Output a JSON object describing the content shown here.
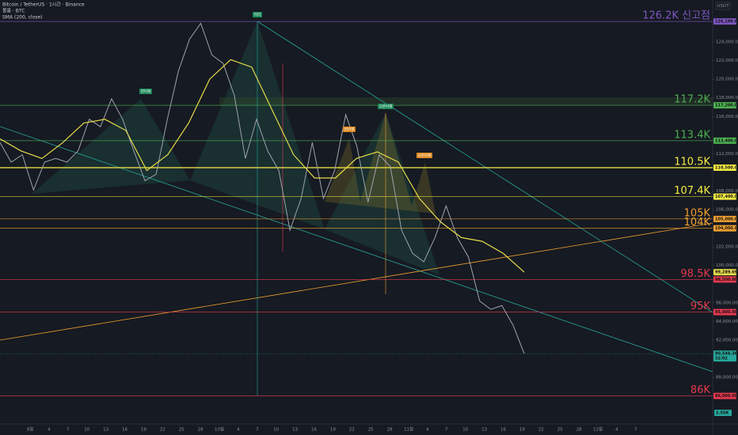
{
  "header": {
    "title": "Bitcoin / TetherUS · 1시간 · Binance",
    "volume": "볼륨 · BTC",
    "indicator": "SMA (200, close)"
  },
  "currency": "USDT",
  "pattern_tags": [
    "왼어깨",
    "머리",
    "오른어깨",
    "왼어깨",
    "오른어깨"
  ],
  "volume_badge": "2.55K",
  "chart_data": {
    "type": "line",
    "ylim": [
      83000,
      128500
    ],
    "yticks": [
      {
        "value": 124000,
        "label": "124,000.00"
      },
      {
        "value": 122000,
        "label": "122,000.00"
      },
      {
        "value": 120000,
        "label": "120,000.00"
      },
      {
        "value": 118000,
        "label": "118,000.00"
      },
      {
        "value": 116000,
        "label": "116,000.00"
      },
      {
        "value": 112000,
        "label": "112,000.00"
      },
      {
        "value": 108000,
        "label": "108,000.00"
      },
      {
        "value": 106000,
        "label": "106,000.00"
      },
      {
        "value": 102000,
        "label": "102,000.00"
      },
      {
        "value": 100000,
        "label": "100,000.00"
      },
      {
        "value": 96000,
        "label": "96,000.00"
      },
      {
        "value": 94000,
        "label": "94,000.00"
      },
      {
        "value": 92000,
        "label": "92,000.00"
      },
      {
        "value": 88000,
        "label": "88,000.00"
      }
    ],
    "categories": [
      "9월",
      "4",
      "7",
      "10",
      "13",
      "16",
      "19",
      "22",
      "25",
      "28",
      "10월",
      "4",
      "7",
      "10",
      "13",
      "16",
      "19",
      "22",
      "25",
      "28",
      "11월",
      "4",
      "7",
      "10",
      "13",
      "16",
      "19",
      "22",
      "25",
      "28",
      "12월",
      "4",
      "7"
    ],
    "price": {
      "color": "#9ea3ad",
      "values": [
        113200,
        111100,
        111900,
        108100,
        111100,
        111500,
        111100,
        112300,
        115700,
        114900,
        117900,
        115700,
        112300,
        109100,
        109800,
        115700,
        120900,
        124300,
        126000,
        122600,
        121700,
        118300,
        111500,
        115700,
        112300,
        110200,
        103800,
        107200,
        113200,
        107200,
        110200,
        116200,
        112800,
        106800,
        111900,
        110600,
        103800,
        101300,
        100400,
        103000,
        106400,
        103000,
        100900,
        96200,
        95300,
        95700,
        93600,
        90546.36
      ]
    },
    "sma": {
      "color": "#e6dc4a",
      "values": [
        113600,
        112300,
        111500,
        113200,
        115300,
        115700,
        114500,
        110200,
        111900,
        115300,
        120000,
        122100,
        121300,
        116600,
        111900,
        109400,
        109400,
        111500,
        112200,
        111100,
        107200,
        104700,
        103000,
        102600,
        101300,
        99289.69
      ]
    },
    "levels": [
      {
        "text": "126.2K 신고점",
        "value": 126199.63,
        "label": "126,199.63",
        "color": "#7e57c2"
      },
      {
        "text": "117.2K",
        "value": 117200,
        "label": "117,200.00",
        "color": "#4caf50"
      },
      {
        "text": "113.4K",
        "value": 113400,
        "label": "113,400.00",
        "color": "#4caf50"
      },
      {
        "text": "110.5K",
        "value": 110500,
        "label": "110,500.00",
        "color": "#f5ec42"
      },
      {
        "text": "107.4K",
        "value": 107400,
        "label": "107,400.00",
        "color": "#f5ec42"
      },
      {
        "text": "105K",
        "value": 105000,
        "label": "105,000.00",
        "color": "#f0a030"
      },
      {
        "text": "104K",
        "value": 104000,
        "label": "104,000.00",
        "color": "#f0a030"
      },
      {
        "text": "98.5K",
        "value": 98500,
        "label": "98,500.00",
        "color": "#e53950"
      },
      {
        "text": "95K",
        "value": 95000,
        "label": "95,000.00",
        "color": "#e53950"
      },
      {
        "text": "86K",
        "value": 86000,
        "label": "86,000.00",
        "color": "#e53950"
      }
    ],
    "sma_badge": {
      "value": 99289.69,
      "label": "99,289.69"
    },
    "last_price": {
      "value": 90546.36,
      "label": "90,546.36",
      "countdown": "32:02"
    }
  }
}
